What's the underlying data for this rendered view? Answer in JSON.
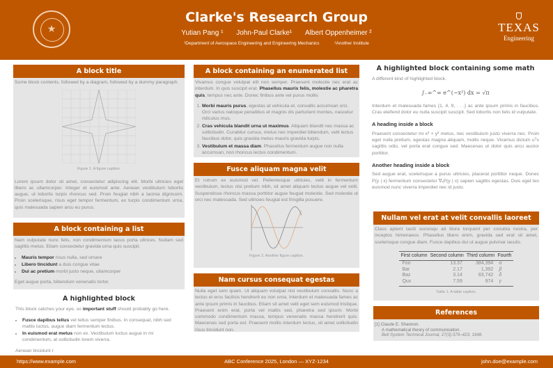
{
  "header": {
    "title": "Clarke's Research Group",
    "authors": [
      "Yutian Pang ¹",
      "John-Paul Clarke¹",
      "Albert Oppenheimer ²"
    ],
    "affiliations": [
      "¹Department of Aerospace Engineering and Engineering Mechanics",
      "²Another Institute"
    ],
    "logo_left": "The University of Texas at Austin",
    "logo_right": {
      "line1": "TEXAS",
      "line2": "Engineering"
    }
  },
  "col1": {
    "block1": {
      "title": "A block title",
      "intro": "Some block contents, followed by a diagram, followed by a dummy paragraph.",
      "caption": "Figure 1. A figure caption.",
      "para": "Lorem ipsum dolor sit amet, consectetur adipiscing elit.  Morbi ultricies eget libero ac ullamcorper.  Integer et euismod ante.  Aenean vestibulum lobortis augue, ut lobortis turpis rhoncus sed.  Proin feugiat nibh a lacinia dignissim. Proin scelerisque, risus eget tempor fermentum, ex turpis condimentum urna, quis malesuada sapien arcu eu purus."
    },
    "block2": {
      "title": "A block containing a list",
      "intro": "Nam vulputate nunc felis, non condimentum lacus porta ultrices.  Nullam sed sagittis metus.  Etiam consectetur gravida urna quis suscipit.",
      "items": [
        {
          "bold": "Mauris tempor",
          "text": " risus nulla, sed ornare"
        },
        {
          "bold": "Libero tincidunt",
          "text": " a duis congue vitae"
        },
        {
          "bold": "Dui ac pretium",
          "text": " morbi justo neque, ullamcorper"
        }
      ],
      "outro": "Eget augue porta, bibendum venenatis tortor."
    },
    "block3": {
      "title": "A highlighted block",
      "intro_pre": "This block catches your eye, so ",
      "intro_bold": "important stuff",
      "intro_post": " should probably go here.",
      "items": [
        {
          "bold": "Fusce dapibus tellus",
          "text": " vel tellus semper finibus.  In consequat, nibh sed mattis luctus, augue diam fermentum lectus."
        },
        {
          "bold": "In euismod erat metus",
          "text": " non ex. Vestibulum luctus augue in mi condimentum, at sollicitudin lorem viverra."
        }
      ],
      "outro": "Aenean tincidunt r"
    }
  },
  "col2": {
    "block1": {
      "title": "A block containing an enumerated list",
      "intro_pre": "Vivamus congue volutpat elit non semper.  Praesent molestie nec erat ac interdum. In quis suscipit erat. ",
      "intro_bold": "Phasellus mauris felis, molestie ac pharetra quis",
      "intro_post": ", tempus nec ante.  Donec finibus ante vel purus mollis",
      "items": [
        {
          "bold": "Morbi mauris purus",
          "text": ", egestas at vehicula et, convallis accumsan orci. Orci varius natoque penatibus et magnis dis parturient montes, nascetur ridiculus mus."
        },
        {
          "bold": "Cras vehicula blandit urna ut maximus",
          "text": ". Aliquam blandit nec massa ac sollicitudin. Curabitur cursus, metus nec imperdiet bibendum, velit lectus faucibus dolor, quis gravida metus mauris gravida turpis."
        },
        {
          "bold": "Vestibulum et massa diam",
          "text": ". Phasellus fermentum augue non nulla accumsan, non rhoncus lectus condimentum."
        }
      ]
    },
    "block2": {
      "title": "Fusce aliquam magna velit",
      "para": "Et rutrum ex euismod vel.  Pellentesque ultricies, velit in fermentum vestibulum, lectus nisi pretium nibh, sit amet aliquam lectus augue vel velit. Suspendisse rhoncus massa porttitor augue feugiat molestie.  Sed molestie ut orci nec malesuada.  Sed ultricies feugiat est fringilla posuere.",
      "caption": "Figure 2. Another figure caption."
    },
    "block3": {
      "title": "Nam cursus consequat egestas",
      "para": "Nulla eget sem quam.  Ut aliquam volutpat nisi vestibulum convallis.  Nunc a lectus et eros facilisis hendrerit eu non urna.  Interdum et malesuada fames ac ante ipsum primis in faucibus.  Etiam sit amet velit eget sem euismod tristique.  Praesent enim erat, porta vel mattis sed, pharetra sed ipsum. Morbi commodo condimentum massa, tempus venenatis massa hendrerit quis.  Maecenas sed porta est.  Praesent mollis interdum lectus, sit amet sollicitudin risus tincidunt non."
    }
  },
  "col3": {
    "block1": {
      "title": "A highlighted block containing some math",
      "intro": "A different kind of highlighted block.",
      "equation": "∫₋∞^∞ e^(−x²) dx = √π",
      "para1": "Interdum et malesuada fames {1, 4, 9, . . .} ac ante ipsum primis in faucibus.  Cras eleifend dolor eu nulla suscipit suscipit.  Sed lobortis non felis id vulputate.",
      "heading1": "A heading inside a block",
      "para2": "Praesent consectetur mi x² + y² metus, nec vestibulum justo viverra nec. Proin eget nulla pretium, egestas magna aliquam, mollis neque. Vivamus dictum uᵀv sagittis odio, vel porta erat congue sed. Maecenas ut dolor quis arcu auctor porttitor.",
      "heading2": "Another heading inside a block",
      "para3": "Sed augue erat, scelerisque a purus ultricies, placerat porttitor neque. Donec P(y | x) fermentum consectetur ∇ₓP(y | x) sapien sagittis egestas. Duis eget leo euismod nunc viverra imperdiet nec id justo."
    },
    "block2": {
      "title": "Nullam vel erat at velit convallis laoreet",
      "para": "Class aptent taciti sociosqu ad litora torquent per conubia nostra, per inceptos himenaeos.   Phasellus libero enim, gravida sed erat sit amet, scelerisque congue diam. Fusce dapibus dui ut augue pulvinar iaculis.",
      "table": {
        "headers": [
          "First column",
          "Second column",
          "Third column",
          "Fourth"
        ],
        "rows": [
          [
            "Foo",
            "13.37",
            "384,394",
            "α"
          ],
          [
            "Bar",
            "2.17",
            "1,392",
            "β"
          ],
          [
            "Baz",
            "3.14",
            "83,742",
            "δ"
          ],
          [
            "Qux",
            "7.59",
            "974",
            "γ"
          ]
        ]
      },
      "caption": "Table 1. A table caption."
    },
    "block3": {
      "title": "References",
      "ref_label": "[1]",
      "ref_author": "Claude E. Shannon.",
      "ref_title": "A mathematical theory of communication.",
      "ref_journal": "Bell System Technical Journal, 27(3):379–423, 1948."
    }
  },
  "footer": {
    "left": "https://www.example.com",
    "center": "ABC Conference 2025, London — XYZ-1234",
    "right": "john.doe@example.com"
  },
  "colors": {
    "accent": "#bf5700",
    "block_bg": "#e5e5e5"
  }
}
